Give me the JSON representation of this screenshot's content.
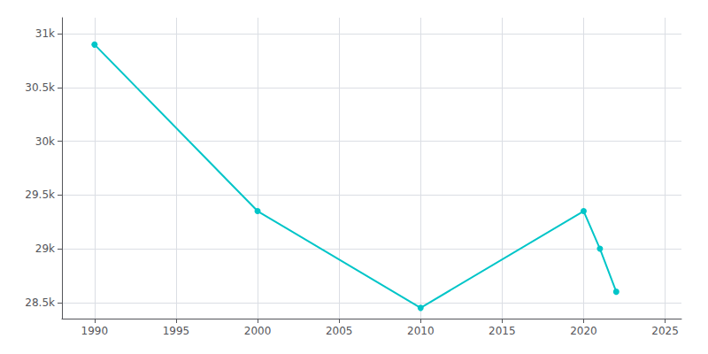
{
  "chart_data": {
    "type": "line",
    "x": [
      1990,
      2000,
      2010,
      2020,
      2021,
      2022
    ],
    "values": [
      30900,
      29350,
      28450,
      29350,
      29000,
      28600
    ],
    "color": "#00C5C8",
    "marker": "circle",
    "xlim": [
      1988,
      2026
    ],
    "xticks": [
      1990,
      1995,
      2000,
      2005,
      2010,
      2015,
      2020,
      2025
    ],
    "ylim": [
      28350,
      31150
    ],
    "yticks": [
      {
        "value": 28500,
        "label": "28.5k"
      },
      {
        "value": 29000,
        "label": "29k"
      },
      {
        "value": 29500,
        "label": "29.5k"
      },
      {
        "value": 30000,
        "label": "30k"
      },
      {
        "value": 30500,
        "label": "30.5k"
      },
      {
        "value": 31000,
        "label": "31k"
      }
    ],
    "grid": true
  }
}
